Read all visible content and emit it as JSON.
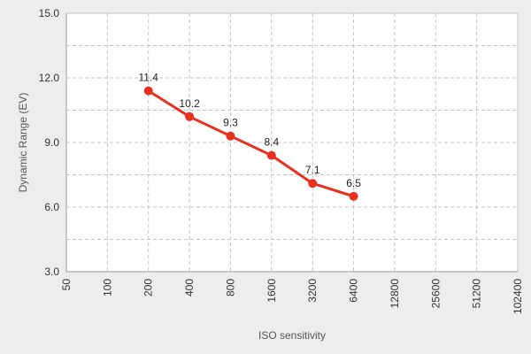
{
  "chart_data": {
    "type": "line",
    "title": "",
    "xlabel": "ISO sensitivity",
    "ylabel": "Dynamic Range (EV)",
    "x_scale": "log2",
    "x_ticks": [
      "50",
      "100",
      "200",
      "400",
      "800",
      "1600",
      "3200",
      "6400",
      "12800",
      "25600",
      "51200",
      "102400"
    ],
    "y_ticks": [
      "3.0",
      "6.0",
      "9.0",
      "12.0",
      "15.0"
    ],
    "ylim": [
      3.0,
      15.0
    ],
    "grid": true,
    "series": [
      {
        "x": [
          200,
          400,
          800,
          1600,
          3200,
          6400
        ],
        "values": [
          11.4,
          10.2,
          9.3,
          8.4,
          7.1,
          6.5
        ],
        "labels": [
          "11.4",
          "10.2",
          "9.3",
          "8.4",
          "7.1",
          "6.5"
        ],
        "color": "#e8301e"
      }
    ],
    "colors": {
      "background": "#ededed",
      "plot_background": "#ffffff",
      "grid": "#c4c4c4",
      "series": "#e8301e"
    }
  }
}
